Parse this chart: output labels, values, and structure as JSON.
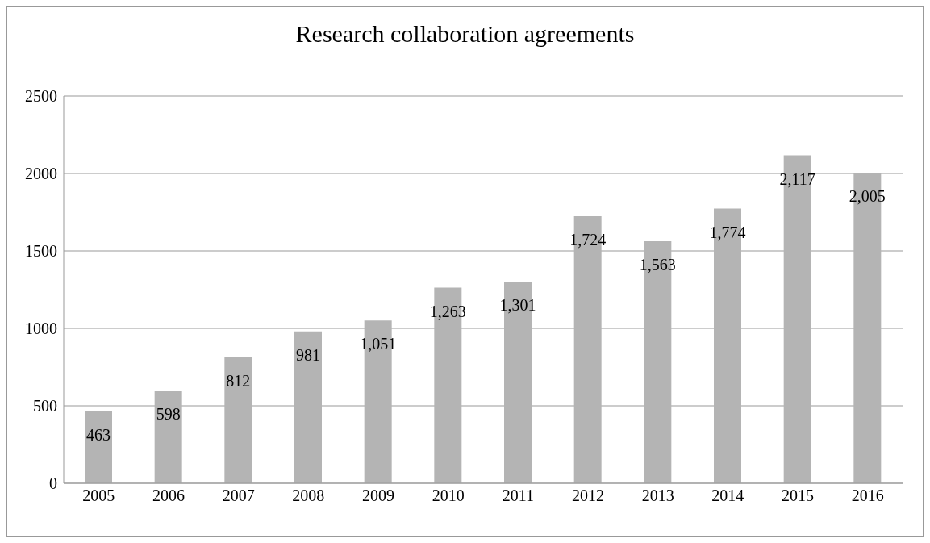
{
  "chart_data": {
    "type": "bar",
    "title": "Research collaboration agreements",
    "categories": [
      "2005",
      "2006",
      "2007",
      "2008",
      "2009",
      "2010",
      "2011",
      "2012",
      "2013",
      "2014",
      "2015",
      "2016"
    ],
    "values": [
      463,
      598,
      812,
      981,
      1051,
      1263,
      1301,
      1724,
      1563,
      1774,
      2117,
      2005
    ],
    "value_labels": [
      "463",
      "598",
      "812",
      "981",
      "1,051",
      "1,263",
      "1,301",
      "1,724",
      "1,563",
      "1,774",
      "2,117",
      "2,005"
    ],
    "color": "#b4b4b4",
    "ylim": [
      0,
      2500
    ],
    "yticks": [
      0,
      500,
      1000,
      1500,
      2000,
      2500
    ],
    "grid": "y",
    "legend": false
  }
}
